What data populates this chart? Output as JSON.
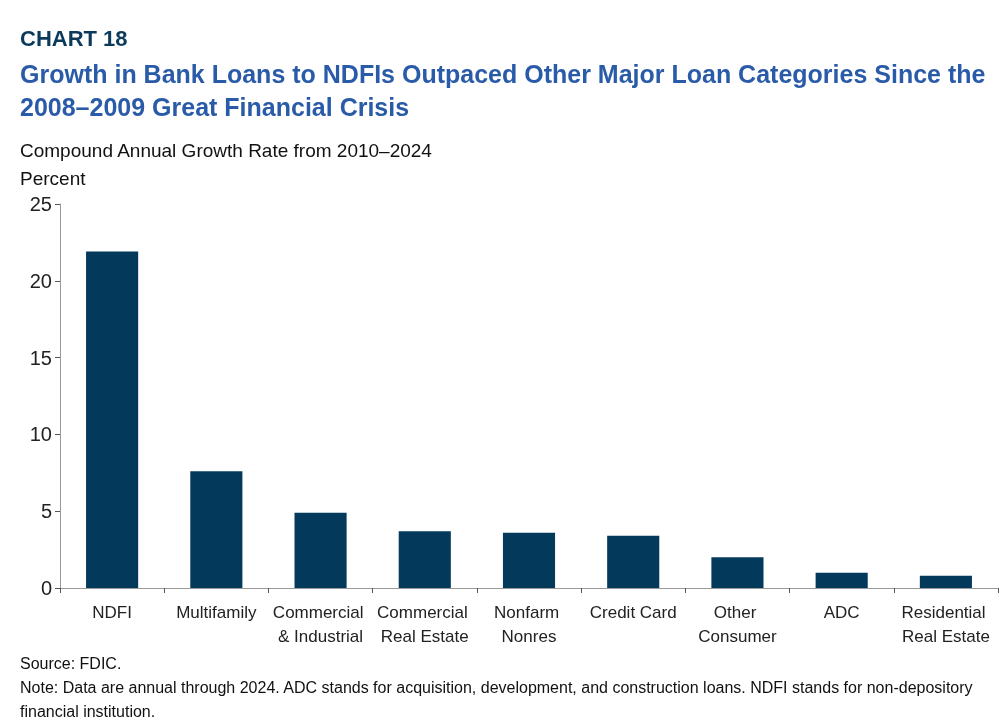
{
  "chart_data": {
    "type": "bar",
    "title": "Growth in Bank Loans to NDFIs Outpaced Other Major Loan Categories Since the 2008–2009 Great Financial Crisis",
    "subtitle": "Compound Annual Growth Rate from 2010–2024",
    "ylabel": "Percent",
    "annotations": [
      "CHART 18",
      "Source: FDIC.",
      "Note: Data are annual through 2024. ADC stands for acquisition, development, and construction loans. NDFI stands for non-depository financial institution."
    ],
    "categories": [
      "NDFI",
      "Multifamily",
      "Commercial & Industrial",
      "Commercial Real Estate",
      "Nonfarm Nonres",
      "Credit Card",
      "Other Consumer",
      "ADC",
      "Residential Real Estate"
    ],
    "values": [
      21.9,
      7.6,
      4.9,
      3.7,
      3.6,
      3.4,
      2.0,
      1.0,
      0.8
    ],
    "color": "#033a5c",
    "ylim": [
      0,
      25
    ],
    "yticks": [
      0,
      5,
      10,
      15,
      20,
      25
    ]
  }
}
